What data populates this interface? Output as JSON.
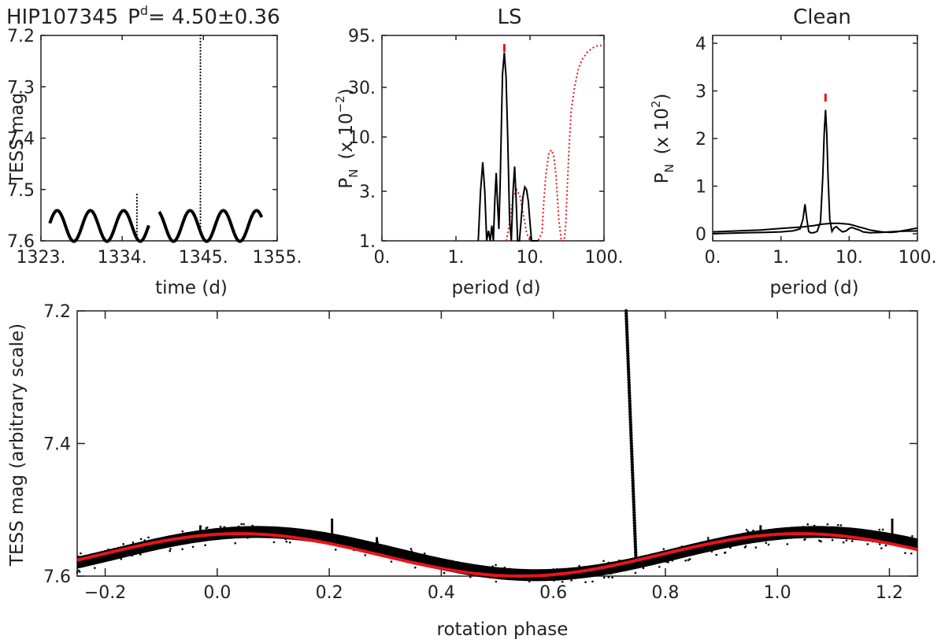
{
  "title": {
    "star": "HIP107345",
    "period_label": "P",
    "period_sup": "d",
    "period_value": "= 4.50±0.36"
  },
  "colors": {
    "data": "#000000",
    "model": "#e8141a",
    "window": "#e8141a",
    "axis": "#222222"
  },
  "chart_data": [
    {
      "id": "lightcurve",
      "type": "scatter",
      "title": "",
      "xlabel": "time (d)",
      "ylabel": "TESS mag",
      "xlim": [
        1323,
        1355
      ],
      "ylim": [
        7.2,
        7.6
      ],
      "y_inverted": true,
      "xticks": [
        "1323.",
        "1334.",
        "1345.",
        "1355."
      ],
      "xtick_values": [
        1323,
        1334,
        1345,
        1355
      ],
      "yticks": [
        "7.2",
        "7.3",
        "7.4",
        "7.5",
        "7.6"
      ],
      "ytick_values": [
        7.2,
        7.3,
        7.4,
        7.5,
        7.6
      ],
      "segments": [
        [
          1324.2,
          1337.6
        ],
        [
          1339.0,
          1352.9
        ]
      ],
      "period_days": 4.5,
      "mean_mag": 7.571,
      "amplitude_mag": 0.03,
      "flares": [
        {
          "time": 1336.0,
          "peak_mag": 7.51
        },
        {
          "time": 1344.6,
          "peak_mag": 7.2
        }
      ]
    },
    {
      "id": "ls",
      "type": "line",
      "title": "LS",
      "xlabel": "period (d)",
      "ylabel": "P",
      "ylabel_sub": "N",
      "ylabel_unit": "(x 10",
      "ylabel_exp": "−2",
      "ylabel_close": ")",
      "xscale": "log",
      "yscale": "log",
      "xlim": [
        0.1,
        100
      ],
      "ylim": [
        1,
        95
      ],
      "xticks": [
        "0.",
        "1.",
        "10.",
        "100."
      ],
      "xtick_values": [
        0.1,
        1,
        10,
        100
      ],
      "yticks": [
        "1.",
        "3.",
        "10.",
        "30.",
        "95."
      ],
      "ytick_values": [
        1,
        3,
        10,
        30,
        95
      ],
      "peak_marker_period": 4.5,
      "series": [
        {
          "name": "periodogram",
          "style": "solid",
          "color": "#000000",
          "x": [
            2.0,
            2.15,
            2.3,
            2.45,
            2.6,
            2.75,
            2.9,
            3.05,
            3.2,
            3.35,
            3.5,
            3.65,
            3.8,
            3.95,
            4.1,
            4.25,
            4.5,
            4.75,
            5.0,
            5.3,
            5.6,
            5.9,
            6.2,
            6.5,
            6.8,
            7.2,
            7.6,
            8.0,
            8.5,
            9.0,
            9.5,
            10.0,
            10.5,
            11.0,
            11.5,
            12.0,
            12.5,
            13.0
          ],
          "y": [
            1.0,
            3.0,
            5.7,
            3.0,
            1.0,
            1.25,
            1.0,
            1.4,
            1.0,
            2.5,
            4.5,
            2.2,
            1.3,
            3.5,
            12,
            40,
            65,
            38,
            10,
            1.6,
            1.0,
            3.0,
            5.2,
            2.5,
            1.0,
            1.0,
            1.6,
            2.6,
            3.3,
            3.1,
            2.4,
            1.5,
            1.0,
            1.0,
            1.0,
            1.0,
            1.0,
            1.0
          ]
        },
        {
          "name": "spectral window",
          "style": "dotted",
          "color": "#e8141a",
          "x": [
            4.8,
            5.3,
            5.9,
            6.6,
            7.3,
            8.0,
            9.0,
            10.0,
            11.5,
            12.8,
            14.5,
            15.5,
            16.5,
            18.0,
            19.5,
            21.0,
            22.5,
            24.5,
            26.5,
            28.0,
            29.0,
            30.5,
            32.0,
            34.0,
            36.0,
            40.0,
            45.0,
            50.0,
            60.0,
            70.0,
            80.0,
            90.0,
            100.0
          ],
          "y": [
            1.0,
            1.5,
            2.6,
            3.1,
            2.7,
            1.9,
            1.2,
            1.0,
            1.0,
            1.0,
            1.2,
            2.6,
            4.5,
            7.0,
            7.5,
            6.5,
            4.2,
            1.6,
            1.0,
            1.0,
            1.0,
            1.5,
            3.5,
            9.0,
            18,
            30,
            45,
            55,
            66,
            72,
            75,
            76,
            77
          ]
        }
      ]
    },
    {
      "id": "clean",
      "type": "line",
      "title": "Clean",
      "xlabel": "period (d)",
      "ylabel": "P",
      "ylabel_sub": "N",
      "ylabel_unit": "(x 10",
      "ylabel_exp": "2",
      "ylabel_close": ")",
      "xscale": "log",
      "xlim": [
        0.1,
        100
      ],
      "ylim": [
        0,
        4
      ],
      "xticks": [
        "0.",
        "1.",
        "10.",
        "100."
      ],
      "xtick_values": [
        0.1,
        1,
        10,
        100
      ],
      "yticks": [
        "0",
        "1",
        "2",
        "3",
        "4"
      ],
      "ytick_values": [
        0,
        1,
        2,
        3,
        4
      ],
      "peak_marker_period": 4.5,
      "series": [
        {
          "name": "clean spectrum",
          "style": "solid",
          "color": "#000000",
          "x": [
            0.1,
            0.3,
            0.6,
            1.0,
            1.5,
            1.9,
            2.1,
            2.25,
            2.4,
            2.55,
            2.7,
            3.0,
            3.4,
            3.8,
            4.1,
            4.3,
            4.5,
            4.7,
            4.9,
            5.2,
            5.6,
            6.0,
            6.5,
            7.0,
            8.0,
            9.0,
            10.0,
            11.0,
            12.5,
            14.0,
            16.0,
            20.0,
            30.0,
            50.0,
            100.0
          ],
          "y": [
            0.0,
            0.02,
            0.03,
            0.04,
            0.06,
            0.1,
            0.3,
            0.62,
            0.3,
            0.05,
            0.02,
            0.02,
            0.05,
            0.25,
            1.2,
            2.1,
            2.6,
            2.1,
            1.2,
            0.3,
            0.05,
            0.12,
            0.15,
            0.1,
            0.04,
            0.06,
            0.11,
            0.13,
            0.1,
            0.08,
            0.04,
            0.02,
            0.03,
            0.05,
            0.06
          ]
        },
        {
          "name": "clean residual",
          "style": "solid",
          "color": "#000000",
          "x": [
            0.1,
            0.5,
            1.0,
            2.0,
            3.0,
            4.0,
            5.5,
            7.0,
            10.0,
            12.0,
            14.0,
            16.0,
            20.0,
            30.0,
            40.0,
            50.0,
            70.0,
            100.0
          ],
          "y": [
            0.04,
            0.08,
            0.11,
            0.14,
            0.17,
            0.2,
            0.22,
            0.22,
            0.2,
            0.17,
            0.14,
            0.12,
            0.08,
            0.04,
            0.03,
            0.04,
            0.08,
            0.12
          ]
        }
      ]
    },
    {
      "id": "phase",
      "type": "scatter",
      "title": "",
      "xlabel": "rotation phase",
      "ylabel": "TESS mag (arbitrary scale)",
      "xlim": [
        -0.25,
        1.25
      ],
      "ylim": [
        7.2,
        7.6
      ],
      "y_inverted": true,
      "xticks": [
        "−0.2",
        "0.0",
        "0.2",
        "0.4",
        "0.6",
        "0.8",
        "1.0",
        "1.2"
      ],
      "xtick_values": [
        -0.2,
        0.0,
        0.2,
        0.4,
        0.6,
        0.8,
        1.0,
        1.2
      ],
      "yticks": [
        "7.2",
        "7.4",
        "7.6"
      ],
      "ytick_values": [
        7.2,
        7.4,
        7.6
      ],
      "model": {
        "name": "sinusoidal fit",
        "mean_mag": 7.568,
        "amplitude_mag": 0.032,
        "phase_of_max_brightness": 0.04
      },
      "flares": [
        {
          "phase": -0.03,
          "peak_mag": 7.525
        },
        {
          "phase": 0.205,
          "peak_mag": 7.515
        },
        {
          "phase": 0.285,
          "peak_mag": 7.543
        },
        {
          "phase": 0.73,
          "peak_mag": 7.2
        },
        {
          "phase": 0.97,
          "peak_mag": 7.525
        },
        {
          "phase": 1.205,
          "peak_mag": 7.515
        }
      ]
    }
  ]
}
